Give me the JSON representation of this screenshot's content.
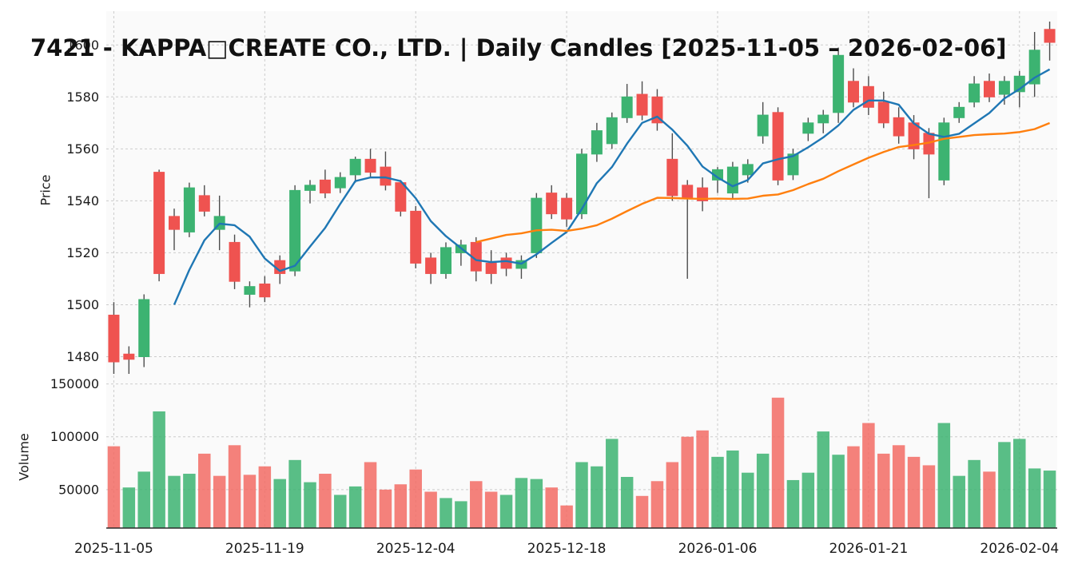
{
  "title": "7421 - KAPPA□CREATE CO., LTD. | Daily Candles [2025-11-05 – 2026-02-06]",
  "chart_data": {
    "type": "candlestick",
    "title": "7421 - KAPPA□CREATE CO., LTD. | Daily Candles [2025-11-05 – 2026-02-06]",
    "ticker": "7421",
    "company": "KAPPA□CREATE CO., LTD.",
    "date_range": "2025-11-05 – 2026-02-06",
    "ylabel_price": "Price",
    "ylabel_volume": "Volume",
    "xlabel": "",
    "grid": true,
    "legend_position": "none",
    "price_ticks": [
      1480,
      1500,
      1520,
      1540,
      1560,
      1580,
      1600
    ],
    "volume_ticks": [
      50000,
      100000,
      150000
    ],
    "price_ylim": [
      1474,
      1613
    ],
    "volume_ylim": [
      0,
      158000
    ],
    "x_ticks": [
      {
        "index": 0,
        "label": "2025-11-05"
      },
      {
        "index": 10,
        "label": "2025-11-19"
      },
      {
        "index": 20,
        "label": "2025-12-04"
      },
      {
        "index": 30,
        "label": "2025-12-18"
      },
      {
        "index": 40,
        "label": "2026-01-06"
      },
      {
        "index": 50,
        "label": "2026-01-21"
      },
      {
        "index": 60,
        "label": "2026-02-04"
      }
    ],
    "ma": {
      "short_window": 5,
      "long_window": 25
    },
    "colors": {
      "up": "#3cb371",
      "down": "#ef5350",
      "wick": "#4d4d4d",
      "ma_short": "#1f77b4",
      "ma_long": "#ff7f0e",
      "volume_up": "#3cb371",
      "volume_down": "#f26b64",
      "panel_bg": "#fafafa",
      "grid": "#cccccc",
      "spine": "#2b2b2b",
      "text": "#1a1a1a"
    },
    "candles": {
      "columns": [
        "date",
        "open",
        "high",
        "low",
        "close",
        "volume"
      ],
      "rows": [
        [
          "2025-11-05",
          1496,
          1501,
          1473,
          1478,
          91000
        ],
        [
          "2025-11-06",
          1481,
          1484,
          1472,
          1479,
          52000
        ],
        [
          "2025-11-07",
          1480,
          1504,
          1476,
          1502,
          67000
        ],
        [
          "2025-11-10",
          1551,
          1552,
          1509,
          1512,
          124000
        ],
        [
          "2025-11-11",
          1534,
          1537,
          1521,
          1529,
          63000
        ],
        [
          "2025-11-12",
          1528,
          1547,
          1526,
          1545,
          65000
        ],
        [
          "2025-11-13",
          1542,
          1546,
          1534,
          1536,
          84000
        ],
        [
          "2025-11-14",
          1529,
          1542,
          1521,
          1534,
          63000
        ],
        [
          "2025-11-17",
          1524,
          1527,
          1506,
          1509,
          92000
        ],
        [
          "2025-11-18",
          1504,
          1509,
          1499,
          1507,
          64000
        ],
        [
          "2025-11-19",
          1508,
          1511,
          1501,
          1503,
          72000
        ],
        [
          "2025-11-20",
          1517,
          1519,
          1508,
          1512,
          60000
        ],
        [
          "2025-11-21",
          1513,
          1546,
          1511,
          1544,
          78000
        ],
        [
          "2025-11-25",
          1544,
          1548,
          1539,
          1546,
          57000
        ],
        [
          "2025-11-26",
          1548,
          1552,
          1541,
          1543,
          65000
        ],
        [
          "2025-11-27",
          1545,
          1551,
          1543,
          1549,
          45000
        ],
        [
          "2025-11-28",
          1550,
          1557,
          1547,
          1556,
          53000
        ],
        [
          "2025-12-01",
          1556,
          1560,
          1549,
          1551,
          76000
        ],
        [
          "2025-12-02",
          1553,
          1559,
          1544,
          1546,
          50000
        ],
        [
          "2025-12-03",
          1547,
          1548,
          1534,
          1536,
          55000
        ],
        [
          "2025-12-04",
          1536,
          1538,
          1514,
          1516,
          69000
        ],
        [
          "2025-12-05",
          1518,
          1520,
          1508,
          1512,
          48000
        ],
        [
          "2025-12-08",
          1512,
          1524,
          1510,
          1522,
          42000
        ],
        [
          "2025-12-09",
          1520,
          1525,
          1515,
          1523,
          39000
        ],
        [
          "2025-12-10",
          1524,
          1526,
          1509,
          1513,
          58000
        ],
        [
          "2025-12-11",
          1516,
          1521,
          1508,
          1512,
          48000
        ],
        [
          "2025-12-12",
          1518,
          1520,
          1511,
          1514,
          45000
        ],
        [
          "2025-12-15",
          1514,
          1519,
          1510,
          1517,
          61000
        ],
        [
          "2025-12-16",
          1520,
          1543,
          1518,
          1541,
          60000
        ],
        [
          "2025-12-17",
          1543,
          1546,
          1533,
          1535,
          52000
        ],
        [
          "2025-12-18",
          1541,
          1543,
          1530,
          1533,
          35000
        ],
        [
          "2025-12-19",
          1535,
          1560,
          1533,
          1558,
          76000
        ],
        [
          "2025-12-22",
          1558,
          1570,
          1555,
          1567,
          72000
        ],
        [
          "2025-12-23",
          1562,
          1574,
          1560,
          1572,
          98000
        ],
        [
          "2025-12-24",
          1572,
          1585,
          1570,
          1580,
          62000
        ],
        [
          "2025-12-25",
          1581,
          1586,
          1571,
          1573,
          44000
        ],
        [
          "2025-12-26",
          1580,
          1583,
          1567,
          1570,
          58000
        ],
        [
          "2025-12-29",
          1556,
          1566,
          1540,
          1542,
          76000
        ],
        [
          "2025-12-30",
          1546,
          1548,
          1510,
          1541,
          100000
        ],
        [
          "2026-01-05",
          1545,
          1549,
          1536,
          1540,
          106000
        ],
        [
          "2026-01-06",
          1548,
          1553,
          1543,
          1552,
          81000
        ],
        [
          "2026-01-07",
          1543,
          1555,
          1541,
          1553,
          87000
        ],
        [
          "2026-01-08",
          1550,
          1556,
          1547,
          1554,
          66000
        ],
        [
          "2026-01-09",
          1565,
          1578,
          1562,
          1573,
          84000
        ],
        [
          "2026-01-13",
          1574,
          1576,
          1546,
          1548,
          137000
        ],
        [
          "2026-01-14",
          1550,
          1560,
          1548,
          1558,
          59000
        ],
        [
          "2026-01-15",
          1566,
          1572,
          1563,
          1570,
          66000
        ],
        [
          "2026-01-16",
          1570,
          1575,
          1566,
          1573,
          105000
        ],
        [
          "2026-01-19",
          1574,
          1599,
          1570,
          1596,
          83000
        ],
        [
          "2026-01-20",
          1586,
          1591,
          1576,
          1578,
          91000
        ],
        [
          "2026-01-21",
          1584,
          1588,
          1573,
          1576,
          113000
        ],
        [
          "2026-01-22",
          1578,
          1582,
          1568,
          1570,
          84000
        ],
        [
          "2026-01-23",
          1572,
          1576,
          1562,
          1565,
          92000
        ],
        [
          "2026-01-26",
          1570,
          1573,
          1556,
          1560,
          81000
        ],
        [
          "2026-01-27",
          1566,
          1568,
          1541,
          1558,
          73000
        ],
        [
          "2026-01-28",
          1548,
          1572,
          1546,
          1570,
          113000
        ],
        [
          "2026-01-29",
          1572,
          1578,
          1570,
          1576,
          63000
        ],
        [
          "2026-01-30",
          1578,
          1588,
          1576,
          1585,
          78000
        ],
        [
          "2026-02-02",
          1586,
          1589,
          1578,
          1580,
          67000
        ],
        [
          "2026-02-03",
          1581,
          1588,
          1577,
          1586,
          95000
        ],
        [
          "2026-02-04",
          1582,
          1590,
          1576,
          1588,
          98000
        ],
        [
          "2026-02-05",
          1585,
          1605,
          1580,
          1598,
          70000
        ],
        [
          "2026-02-06",
          1606,
          1609,
          1594,
          1601,
          68000
        ]
      ]
    }
  }
}
